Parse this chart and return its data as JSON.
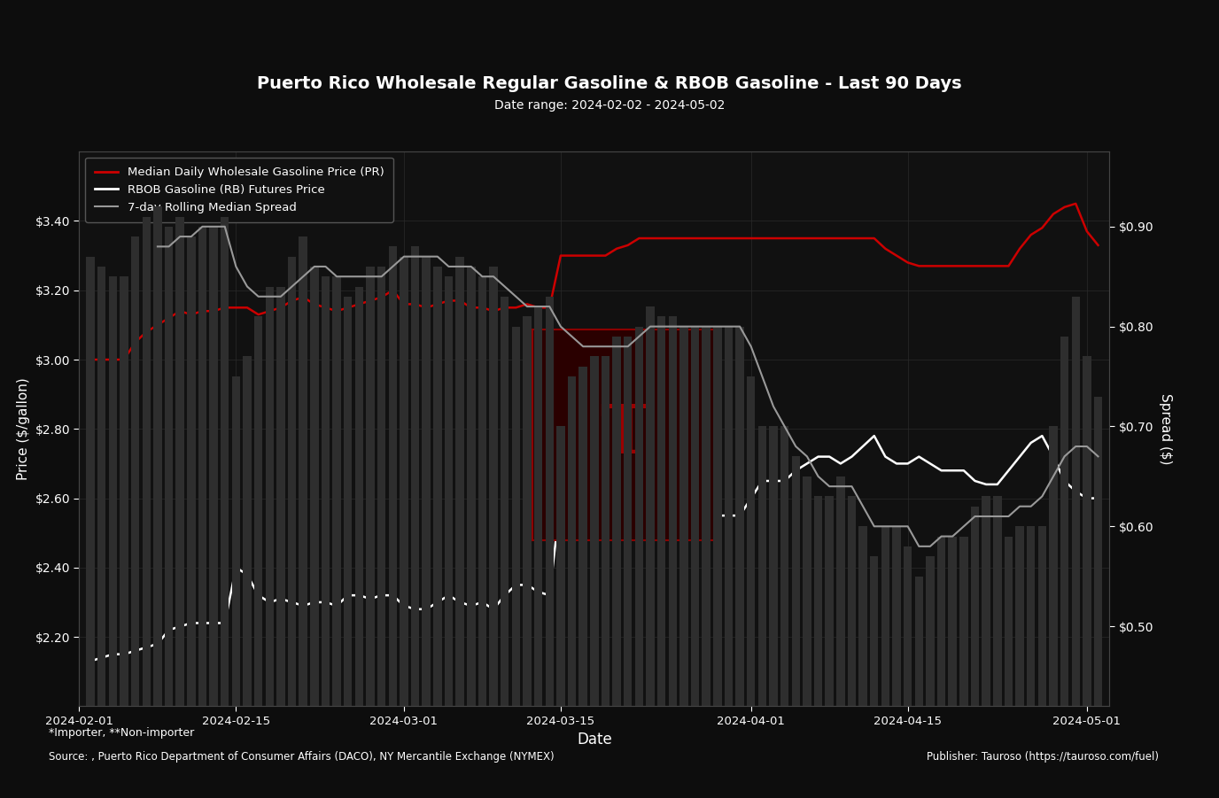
{
  "title": "Puerto Rico Wholesale Regular Gasoline & RBOB Gasoline - Last 90 Days",
  "subtitle": "Date range: 2024-02-02 - 2024-05-02",
  "xlabel": "Date",
  "ylabel_left": "Price ($/gallon)",
  "ylabel_right": "Spread ($)",
  "footnote1": "*Importer, **Non-importer",
  "footnote2": "Source: , Puerto Rico Department of Consumer Affairs (DACO), NY Mercantile Exchange (NYMEX)",
  "footnote3": "Publisher: Tauroso (https://tauroso.com/fuel)",
  "bg_color": "#0d0d0d",
  "plot_bg_color": "#111111",
  "grid_color": "#2a2a2a",
  "text_color": "#ffffff",
  "red_line_color": "#cc0000",
  "white_line_color": "#ffffff",
  "gray_line_color": "#999999",
  "bar_color": "#2e2e2e",
  "legend_bg": "#111111",
  "legend_edge": "#555555",
  "dates": [
    "2024-02-02",
    "2024-02-03",
    "2024-02-04",
    "2024-02-05",
    "2024-02-06",
    "2024-02-07",
    "2024-02-08",
    "2024-02-09",
    "2024-02-10",
    "2024-02-11",
    "2024-02-12",
    "2024-02-13",
    "2024-02-14",
    "2024-02-15",
    "2024-02-16",
    "2024-02-17",
    "2024-02-18",
    "2024-02-19",
    "2024-02-20",
    "2024-02-21",
    "2024-02-22",
    "2024-02-23",
    "2024-02-24",
    "2024-02-25",
    "2024-02-26",
    "2024-02-27",
    "2024-02-28",
    "2024-02-29",
    "2024-03-01",
    "2024-03-02",
    "2024-03-03",
    "2024-03-04",
    "2024-03-05",
    "2024-03-06",
    "2024-03-07",
    "2024-03-08",
    "2024-03-09",
    "2024-03-10",
    "2024-03-11",
    "2024-03-12",
    "2024-03-13",
    "2024-03-14",
    "2024-03-15",
    "2024-03-16",
    "2024-03-17",
    "2024-03-18",
    "2024-03-19",
    "2024-03-20",
    "2024-03-21",
    "2024-03-22",
    "2024-03-23",
    "2024-03-24",
    "2024-03-25",
    "2024-03-26",
    "2024-03-27",
    "2024-03-28",
    "2024-03-29",
    "2024-03-30",
    "2024-03-31",
    "2024-04-01",
    "2024-04-02",
    "2024-04-03",
    "2024-04-04",
    "2024-04-05",
    "2024-04-06",
    "2024-04-07",
    "2024-04-08",
    "2024-04-09",
    "2024-04-10",
    "2024-04-11",
    "2024-04-12",
    "2024-04-13",
    "2024-04-14",
    "2024-04-15",
    "2024-04-16",
    "2024-04-17",
    "2024-04-18",
    "2024-04-19",
    "2024-04-20",
    "2024-04-21",
    "2024-04-22",
    "2024-04-23",
    "2024-04-24",
    "2024-04-25",
    "2024-04-26",
    "2024-04-27",
    "2024-04-28",
    "2024-04-29",
    "2024-04-30",
    "2024-05-01",
    "2024-05-02"
  ],
  "wholesale_price": [
    3.0,
    3.0,
    3.0,
    3.0,
    3.05,
    3.08,
    3.1,
    3.12,
    3.14,
    3.13,
    3.14,
    3.14,
    3.15,
    3.15,
    3.15,
    3.13,
    3.14,
    3.15,
    3.17,
    3.18,
    3.16,
    3.15,
    3.14,
    3.15,
    3.16,
    3.17,
    3.18,
    3.2,
    3.16,
    3.16,
    3.15,
    3.16,
    3.17,
    3.17,
    3.15,
    3.15,
    3.14,
    3.15,
    3.15,
    3.16,
    3.15,
    3.15,
    3.3,
    3.3,
    3.3,
    3.3,
    3.3,
    3.32,
    3.33,
    3.35,
    3.35,
    3.35,
    3.35,
    3.35,
    3.35,
    3.35,
    3.35,
    3.35,
    3.35,
    3.35,
    3.35,
    3.35,
    3.35,
    3.35,
    3.35,
    3.35,
    3.35,
    3.35,
    3.35,
    3.35,
    3.35,
    3.32,
    3.3,
    3.28,
    3.27,
    3.27,
    3.27,
    3.27,
    3.27,
    3.27,
    3.27,
    3.27,
    3.27,
    3.32,
    3.36,
    3.38,
    3.42,
    3.44,
    3.45,
    3.37,
    3.33
  ],
  "rbob_price": [
    2.13,
    2.14,
    2.15,
    2.15,
    2.16,
    2.17,
    2.18,
    2.22,
    2.23,
    2.24,
    2.24,
    2.24,
    2.24,
    2.4,
    2.38,
    2.32,
    2.3,
    2.31,
    2.3,
    2.29,
    2.3,
    2.3,
    2.29,
    2.32,
    2.32,
    2.31,
    2.32,
    2.32,
    2.29,
    2.28,
    2.28,
    2.3,
    2.32,
    2.3,
    2.29,
    2.3,
    2.28,
    2.32,
    2.35,
    2.35,
    2.33,
    2.32,
    2.6,
    2.55,
    2.54,
    2.53,
    2.53,
    2.53,
    2.54,
    2.55,
    2.53,
    2.54,
    2.54,
    2.55,
    2.55,
    2.55,
    2.55,
    2.55,
    2.55,
    2.6,
    2.65,
    2.65,
    2.65,
    2.68,
    2.7,
    2.72,
    2.72,
    2.7,
    2.72,
    2.75,
    2.78,
    2.72,
    2.7,
    2.7,
    2.72,
    2.7,
    2.68,
    2.68,
    2.68,
    2.65,
    2.64,
    2.64,
    2.68,
    2.72,
    2.76,
    2.78,
    2.72,
    2.65,
    2.62,
    2.6,
    2.6
  ],
  "spread": [
    0.87,
    0.86,
    0.85,
    0.85,
    0.89,
    0.91,
    0.92,
    0.9,
    0.91,
    0.89,
    0.9,
    0.9,
    0.91,
    0.75,
    0.77,
    0.81,
    0.84,
    0.84,
    0.87,
    0.89,
    0.86,
    0.85,
    0.85,
    0.83,
    0.84,
    0.86,
    0.86,
    0.88,
    0.87,
    0.88,
    0.87,
    0.86,
    0.85,
    0.87,
    0.86,
    0.85,
    0.86,
    0.83,
    0.8,
    0.81,
    0.82,
    0.83,
    0.7,
    0.75,
    0.76,
    0.77,
    0.77,
    0.79,
    0.79,
    0.8,
    0.82,
    0.81,
    0.81,
    0.8,
    0.8,
    0.8,
    0.8,
    0.8,
    0.8,
    0.75,
    0.7,
    0.7,
    0.7,
    0.67,
    0.65,
    0.63,
    0.63,
    0.65,
    0.63,
    0.6,
    0.57,
    0.6,
    0.6,
    0.58,
    0.55,
    0.57,
    0.59,
    0.59,
    0.59,
    0.62,
    0.63,
    0.63,
    0.59,
    0.6,
    0.6,
    0.6,
    0.7,
    0.79,
    0.83,
    0.77,
    0.73
  ],
  "rolling_spread": [
    null,
    null,
    null,
    null,
    null,
    null,
    0.88,
    0.88,
    0.89,
    0.89,
    0.9,
    0.9,
    0.9,
    0.86,
    0.84,
    0.83,
    0.83,
    0.83,
    0.84,
    0.85,
    0.86,
    0.86,
    0.85,
    0.85,
    0.85,
    0.85,
    0.85,
    0.86,
    0.87,
    0.87,
    0.87,
    0.87,
    0.86,
    0.86,
    0.86,
    0.85,
    0.85,
    0.84,
    0.83,
    0.82,
    0.82,
    0.82,
    0.8,
    0.79,
    0.78,
    0.78,
    0.78,
    0.78,
    0.78,
    0.79,
    0.8,
    0.8,
    0.8,
    0.8,
    0.8,
    0.8,
    0.8,
    0.8,
    0.8,
    0.78,
    0.75,
    0.72,
    0.7,
    0.68,
    0.67,
    0.65,
    0.64,
    0.64,
    0.64,
    0.62,
    0.6,
    0.6,
    0.6,
    0.6,
    0.58,
    0.58,
    0.59,
    0.59,
    0.6,
    0.61,
    0.61,
    0.61,
    0.61,
    0.62,
    0.62,
    0.63,
    0.65,
    0.67,
    0.68,
    0.68,
    0.67
  ],
  "ylim_left": [
    2.0,
    3.6
  ],
  "ylim_right": [
    0.42,
    0.975
  ],
  "yticks_left": [
    2.2,
    2.4,
    2.6,
    2.8,
    3.0,
    3.2,
    3.4
  ],
  "yticks_right": [
    0.5,
    0.6,
    0.7,
    0.8,
    0.9
  ],
  "ytick_labels_left": [
    "$2.20",
    "$2.40",
    "$2.60",
    "$2.80",
    "$3.00",
    "$3.20",
    "$3.40"
  ],
  "ytick_labels_right": [
    "$0.50",
    "$0.60",
    "$0.70",
    "$0.80",
    "$0.90"
  ],
  "xtick_dates": [
    "2024-02-01",
    "2024-02-15",
    "2024-03-01",
    "2024-03-15",
    "2024-04-01",
    "2024-04-15",
    "2024-05-01"
  ],
  "xlim_start": "2024-02-01",
  "xlim_end": "2024-05-03"
}
